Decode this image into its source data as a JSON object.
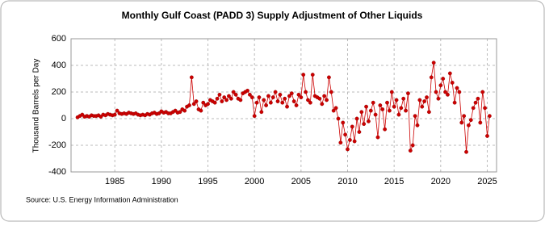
{
  "chart_data": {
    "type": "line",
    "title": "Monthly Gulf Coast (PADD 3) Supply Adjustment of Other Liquids",
    "y_label": "Thousand Barrels per Day",
    "source": "Source: U.S. Energy Information Administration",
    "xlim": [
      1980.3,
      2026
    ],
    "xticks": [
      1985,
      1990,
      1995,
      2000,
      2005,
      2010,
      2015,
      2020,
      2025
    ],
    "ylim": [
      -400,
      600
    ],
    "yticks": [
      -400,
      -200,
      0,
      200,
      400,
      600
    ],
    "grid": true,
    "markers": true,
    "x": [
      1981,
      1981.25,
      1981.5,
      1981.75,
      1982,
      1982.25,
      1982.5,
      1982.75,
      1983,
      1983.25,
      1983.5,
      1983.75,
      1984,
      1984.25,
      1984.5,
      1984.75,
      1985,
      1985.25,
      1985.5,
      1985.75,
      1986,
      1986.25,
      1986.5,
      1986.75,
      1987,
      1987.25,
      1987.5,
      1987.75,
      1988,
      1988.25,
      1988.5,
      1988.75,
      1989,
      1989.25,
      1989.5,
      1989.75,
      1990,
      1990.25,
      1990.5,
      1990.75,
      1991,
      1991.25,
      1991.5,
      1991.75,
      1992,
      1992.25,
      1992.5,
      1992.75,
      1993,
      1993.25,
      1993.5,
      1993.75,
      1994,
      1994.25,
      1994.5,
      1994.75,
      1995,
      1995.25,
      1995.5,
      1995.75,
      1996,
      1996.25,
      1996.5,
      1996.75,
      1997,
      1997.25,
      1997.5,
      1997.75,
      1998,
      1998.25,
      1998.5,
      1998.75,
      1999,
      1999.25,
      1999.5,
      1999.75,
      2000,
      2000.25,
      2000.5,
      2000.75,
      2001,
      2001.25,
      2001.5,
      2001.75,
      2002,
      2002.25,
      2002.5,
      2002.75,
      2003,
      2003.25,
      2003.5,
      2003.75,
      2004,
      2004.25,
      2004.5,
      2004.75,
      2005,
      2005.25,
      2005.5,
      2005.75,
      2006,
      2006.25,
      2006.5,
      2006.75,
      2007,
      2007.25,
      2007.5,
      2007.75,
      2008,
      2008.25,
      2008.5,
      2008.75,
      2009,
      2009.25,
      2009.5,
      2009.75,
      2010,
      2010.25,
      2010.5,
      2010.75,
      2011,
      2011.25,
      2011.5,
      2011.75,
      2012,
      2012.25,
      2012.5,
      2012.75,
      2013,
      2013.25,
      2013.5,
      2013.75,
      2014,
      2014.25,
      2014.5,
      2014.75,
      2015,
      2015.25,
      2015.5,
      2015.75,
      2016,
      2016.25,
      2016.5,
      2016.75,
      2017,
      2017.25,
      2017.5,
      2017.75,
      2018,
      2018.25,
      2018.5,
      2018.75,
      2019,
      2019.25,
      2019.5,
      2019.75,
      2020,
      2020.25,
      2020.5,
      2020.75,
      2021,
      2021.25,
      2021.5,
      2021.75,
      2022,
      2022.25,
      2022.5,
      2022.75,
      2023,
      2023.25,
      2023.5,
      2023.75,
      2024,
      2024.25,
      2024.5,
      2024.75,
      2025,
      2025.25
    ],
    "series": [
      {
        "color": "#cc0000",
        "values": [
          10,
          20,
          30,
          15,
          20,
          15,
          25,
          20,
          20,
          25,
          15,
          30,
          25,
          35,
          30,
          25,
          30,
          60,
          40,
          35,
          40,
          35,
          45,
          40,
          35,
          40,
          30,
          25,
          30,
          25,
          35,
          30,
          40,
          45,
          35,
          40,
          55,
          45,
          50,
          40,
          40,
          50,
          60,
          45,
          50,
          70,
          60,
          90,
          100,
          310,
          110,
          130,
          70,
          60,
          120,
          100,
          110,
          140,
          130,
          120,
          150,
          180,
          130,
          160,
          140,
          170,
          150,
          200,
          180,
          150,
          140,
          190,
          200,
          210,
          180,
          160,
          20,
          120,
          160,
          50,
          140,
          100,
          170,
          120,
          160,
          200,
          130,
          180,
          120,
          150,
          90,
          170,
          190,
          130,
          100,
          180,
          160,
          330,
          200,
          140,
          120,
          330,
          170,
          160,
          150,
          110,
          170,
          140,
          310,
          200,
          60,
          80,
          0,
          -180,
          -30,
          -120,
          -230,
          -160,
          -60,
          -170,
          0,
          -100,
          50,
          -40,
          90,
          -20,
          60,
          120,
          30,
          -140,
          100,
          70,
          -80,
          120,
          60,
          200,
          90,
          140,
          30,
          80,
          150,
          60,
          190,
          -240,
          -200,
          20,
          -50,
          140,
          90,
          130,
          160,
          50,
          310,
          420,
          200,
          150,
          250,
          300,
          200,
          180,
          340,
          270,
          120,
          230,
          200,
          -30,
          20,
          -250,
          -50,
          -10,
          80,
          120,
          150,
          -30,
          200,
          80,
          -130,
          20
        ]
      }
    ]
  }
}
